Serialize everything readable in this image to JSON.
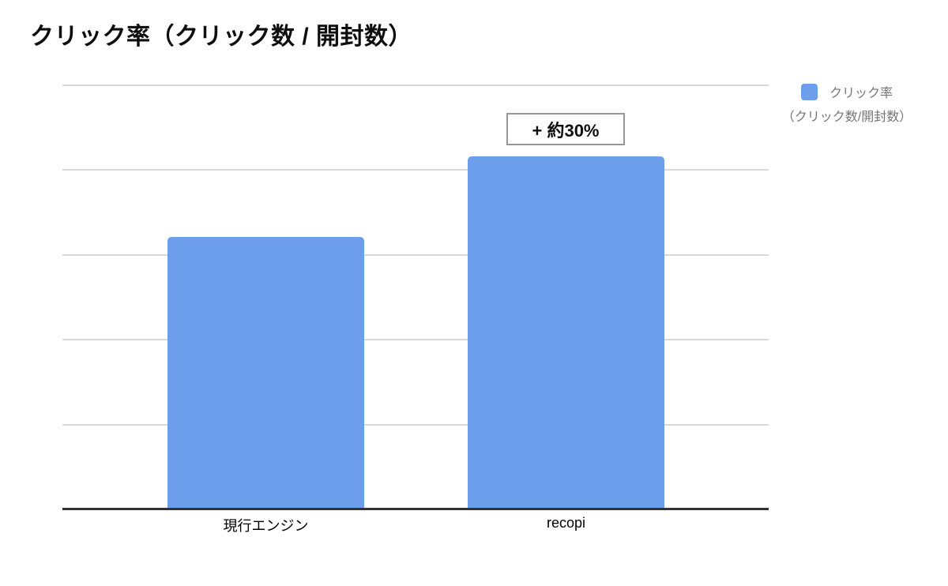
{
  "title": "クリック率（クリック数 / 開封数）",
  "legend": {
    "label_line1": "クリック率",
    "label_line2": "（クリック数/開封数）",
    "swatch_color": "#6d9eeb"
  },
  "annotation": {
    "text": "+ 約30%",
    "attached_to": "recopi"
  },
  "x_axis": {
    "labels": [
      "現行エンジン",
      "recopi"
    ]
  },
  "colors": {
    "bar": "#6d9eeb",
    "gridline": "#d9d9d9",
    "axis": "#333333",
    "legend_text": "#757575",
    "annotation_border": "#969696",
    "title_text": "#0e0e0e",
    "background": "#ffffff"
  },
  "chart_data": {
    "type": "bar",
    "title": "クリック率（クリック数 / 開封数）",
    "categories": [
      "現行エンジン",
      "recopi"
    ],
    "series": [
      {
        "name": "クリック率（クリック数/開封数）",
        "values": [
          0.64,
          0.83
        ]
      }
    ],
    "values": [
      0.64,
      0.83
    ],
    "value_unit": "relative scale — y axis has no tick labels; recopi is approx. +30% vs 現行エンジン",
    "ylim": [
      0,
      1
    ],
    "gridline_count": 5,
    "grid": true,
    "y_tick_labels": [],
    "legend_position": "top-right",
    "bar_color": "#6d9eeb",
    "annotations": [
      {
        "category": "recopi",
        "text": "+ 約30%"
      }
    ]
  }
}
